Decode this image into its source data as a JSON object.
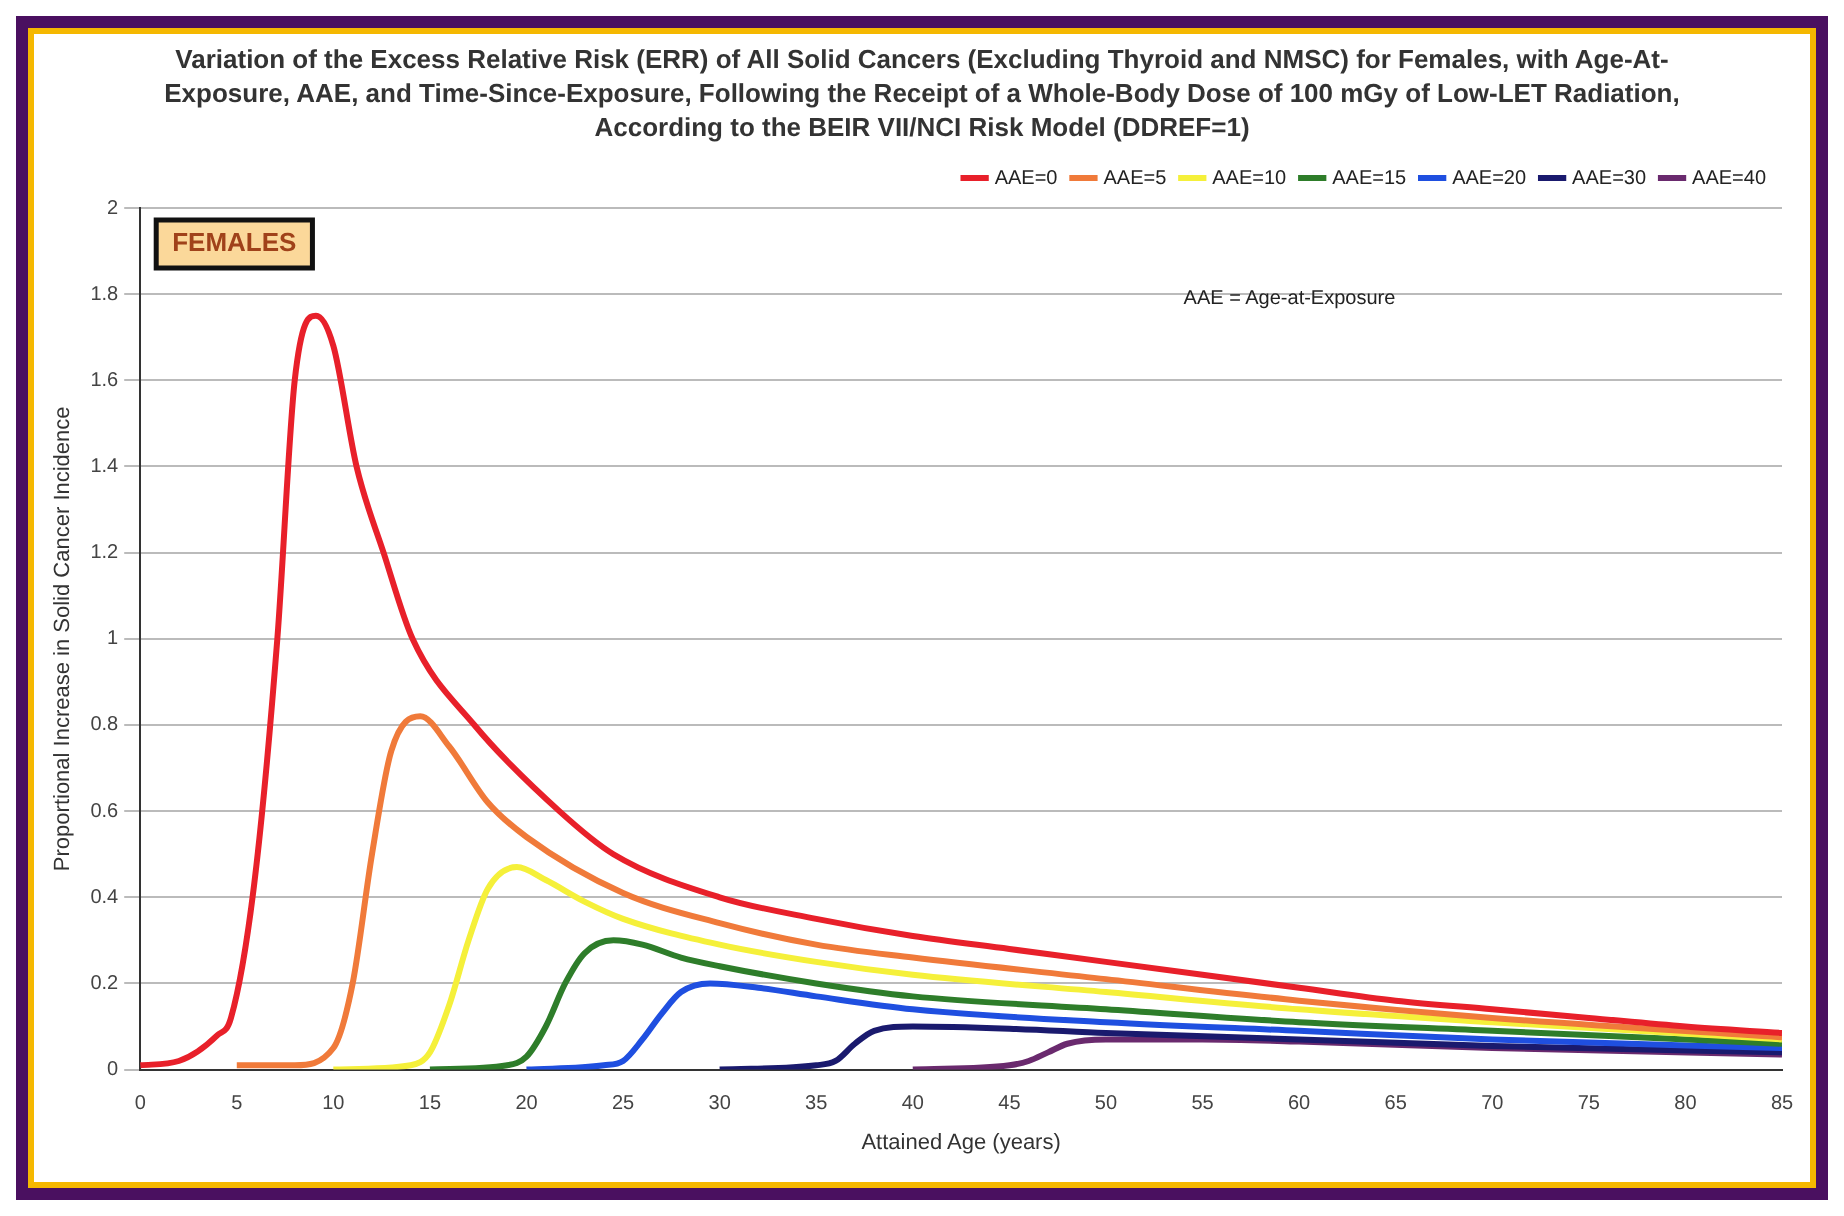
{
  "chart_data": {
    "type": "line",
    "title": "Variation of the Excess Relative Risk (ERR) of All Solid Cancers (Excluding Thyroid and NMSC) for Females, with Age-At-Exposure, AAE, and Time-Since-Exposure, Following the Receipt of a Whole-Body Dose of 100 mGy of Low-LET Radiation, According to the BEIR VII/NCI Risk Model (DDREF=1)",
    "xlabel": "Attained Age (years)",
    "ylabel": "Proportional Increase in Solid Cancer Incidence",
    "annotations": [
      "FEMALES",
      "AAE = Age-at-Exposure"
    ],
    "xlim": [
      0,
      85
    ],
    "xticks": [
      0,
      5,
      10,
      15,
      20,
      25,
      30,
      35,
      40,
      45,
      50,
      55,
      60,
      65,
      70,
      75,
      80,
      85
    ],
    "ylim": [
      0,
      2
    ],
    "yticks": [
      0,
      0.2,
      0.4,
      0.6,
      0.8,
      1,
      1.2,
      1.4,
      1.6,
      1.8,
      2
    ],
    "grid": "y",
    "legend": "top right",
    "marker": "none",
    "line_style": "solid",
    "series": [
      {
        "name": "AAE=0",
        "color": "#e8202a",
        "x": [
          0,
          2,
          4,
          4.7,
          5.9,
          7.1,
          8,
          9.1,
          10,
          11.2,
          12.6,
          14.1,
          17.3,
          21.7,
          24.5,
          30,
          35,
          40,
          45,
          50,
          55,
          60,
          65,
          70,
          75,
          80,
          85
        ],
        "values": [
          0.01,
          0.02,
          0.08,
          0.12,
          0.43,
          1.0,
          1.6,
          1.75,
          1.68,
          1.4,
          1.2,
          1.0,
          0.8,
          0.6,
          0.5,
          0.4,
          0.35,
          0.31,
          0.28,
          0.25,
          0.22,
          0.19,
          0.16,
          0.14,
          0.12,
          0.1,
          0.085
        ]
      },
      {
        "name": "AAE=5",
        "color": "#f07a3a",
        "x": [
          5,
          8,
          10,
          11,
          12,
          13,
          14.5,
          16,
          18,
          20,
          25,
          30,
          35,
          40,
          50,
          60,
          70,
          85
        ],
        "values": [
          0.01,
          0.01,
          0.05,
          0.2,
          0.5,
          0.74,
          0.82,
          0.75,
          0.62,
          0.54,
          0.41,
          0.34,
          0.29,
          0.26,
          0.21,
          0.16,
          0.12,
          0.075
        ]
      },
      {
        "name": "AAE=10",
        "color": "#f5f03a",
        "x": [
          10,
          14,
          15,
          16,
          17,
          18,
          19.5,
          21,
          23,
          25,
          30,
          35,
          40,
          50,
          60,
          70,
          85
        ],
        "values": [
          0,
          0.01,
          0.04,
          0.15,
          0.3,
          0.42,
          0.47,
          0.44,
          0.39,
          0.35,
          0.29,
          0.25,
          0.22,
          0.18,
          0.14,
          0.11,
          0.07
        ]
      },
      {
        "name": "AAE=15",
        "color": "#2e7d2a",
        "x": [
          15,
          19,
          20,
          21,
          22,
          23,
          24.5,
          26,
          28,
          30,
          35,
          40,
          50,
          60,
          70,
          85
        ],
        "values": [
          0,
          0.01,
          0.03,
          0.1,
          0.2,
          0.27,
          0.3,
          0.29,
          0.26,
          0.24,
          0.2,
          0.17,
          0.14,
          0.11,
          0.09,
          0.06
        ]
      },
      {
        "name": "AAE=20",
        "color": "#1f4fe0",
        "x": [
          20,
          24,
          25,
          26,
          27,
          28,
          29.5,
          32,
          35,
          40,
          50,
          60,
          70,
          85
        ],
        "values": [
          0,
          0.01,
          0.02,
          0.07,
          0.13,
          0.18,
          0.2,
          0.19,
          0.17,
          0.14,
          0.11,
          0.09,
          0.07,
          0.05
        ]
      },
      {
        "name": "AAE=30",
        "color": "#1a1a6e",
        "x": [
          30,
          35,
          36,
          37,
          38,
          40,
          45,
          50,
          60,
          70,
          85
        ],
        "values": [
          0,
          0.01,
          0.02,
          0.06,
          0.09,
          0.1,
          0.095,
          0.085,
          0.07,
          0.055,
          0.04
        ]
      },
      {
        "name": "AAE=40",
        "color": "#6a2a6e",
        "x": [
          40,
          45,
          46,
          47,
          48,
          50,
          55,
          60,
          70,
          85
        ],
        "values": [
          0,
          0.01,
          0.02,
          0.04,
          0.06,
          0.07,
          0.07,
          0.065,
          0.05,
          0.035
        ]
      }
    ]
  }
}
